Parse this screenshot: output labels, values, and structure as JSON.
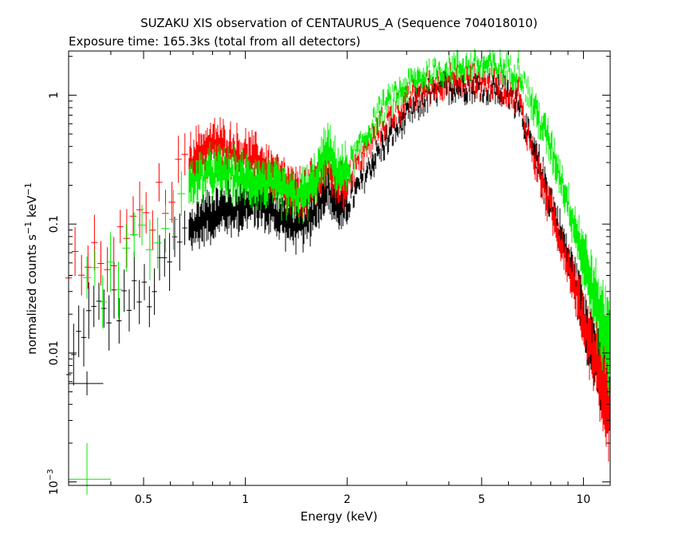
{
  "chart_data": {
    "type": "scatter",
    "title": "SUZAKU XIS observation of CENTAURUS_A (Sequence 704018010)",
    "subtitle": "Exposure time: 165.3ks (total from all detectors)",
    "xlabel": "Energy (keV)",
    "ylabel": {
      "base": "normalized counts s",
      "sup1": "−1",
      "mid": " keV",
      "sup2": "−1"
    },
    "xscale": "log",
    "yscale": "log",
    "xlim": [
      0.3,
      12
    ],
    "ylim": [
      0.00094,
      2.2
    ],
    "x_ticks": [
      {
        "value": 0.5,
        "label": "0.5"
      },
      {
        "value": 1,
        "label": "1"
      },
      {
        "value": 2,
        "label": "2"
      },
      {
        "value": 5,
        "label": "5"
      },
      {
        "value": 10,
        "label": "10"
      }
    ],
    "y_ticks": [
      {
        "value": 0.001,
        "label_base": "10",
        "label_sup": "−3"
      },
      {
        "value": 0.01,
        "label": "0.01"
      },
      {
        "value": 0.1,
        "label": "0.1"
      },
      {
        "value": 1,
        "label": "1"
      }
    ],
    "series": [
      {
        "color": "#000000",
        "x": [
          0.3,
          0.33,
          0.37,
          0.4,
          0.43,
          0.47,
          0.5,
          0.55,
          0.6,
          0.65,
          0.7,
          0.75,
          0.8,
          0.85,
          0.9,
          1.0,
          1.1,
          1.2,
          1.3,
          1.4,
          1.5,
          1.6,
          1.74,
          1.84,
          1.95,
          2.1,
          2.3,
          2.5,
          2.8,
          3.1,
          3.5,
          4.0,
          4.5,
          5.0,
          5.5,
          6.0,
          6.3,
          6.4,
          6.6,
          7.0,
          7.5,
          8.0,
          8.5,
          9.0,
          9.5,
          10.0,
          10.5,
          11.0,
          11.5,
          12.0
        ],
        "y": [
          0.006,
          0.017,
          0.02,
          0.022,
          0.025,
          0.026,
          0.027,
          0.035,
          0.055,
          0.075,
          0.095,
          0.11,
          0.12,
          0.13,
          0.13,
          0.14,
          0.15,
          0.13,
          0.11,
          0.1,
          0.1,
          0.13,
          0.2,
          0.15,
          0.13,
          0.17,
          0.26,
          0.38,
          0.55,
          0.75,
          1.0,
          1.15,
          1.18,
          1.17,
          1.1,
          1.0,
          0.9,
          1.0,
          0.7,
          0.4,
          0.25,
          0.15,
          0.09,
          0.055,
          0.035,
          0.02,
          0.013,
          0.009,
          0.006,
          0.004
        ]
      },
      {
        "color": "#ff0000",
        "x": [
          0.3,
          0.33,
          0.36,
          0.4,
          0.45,
          0.5,
          0.55,
          0.6,
          0.65,
          0.7,
          0.75,
          0.8,
          0.85,
          0.9,
          1.0,
          1.1,
          1.2,
          1.3,
          1.4,
          1.5,
          1.6,
          1.74,
          1.84,
          1.95,
          2.1,
          2.3,
          2.5,
          2.8,
          3.1,
          3.5,
          4.0,
          4.5,
          5.0,
          5.5,
          6.0,
          6.3,
          6.4,
          6.6,
          7.0,
          7.5,
          8.0,
          8.5,
          9.0,
          9.5,
          10.0,
          10.5,
          11.0,
          11.5,
          12.0
        ],
        "y": [
          0.04,
          0.045,
          0.05,
          0.06,
          0.075,
          0.1,
          0.14,
          0.19,
          0.25,
          0.33,
          0.38,
          0.4,
          0.4,
          0.38,
          0.33,
          0.3,
          0.25,
          0.2,
          0.17,
          0.17,
          0.2,
          0.3,
          0.23,
          0.2,
          0.27,
          0.4,
          0.55,
          0.75,
          0.95,
          1.15,
          1.28,
          1.3,
          1.28,
          1.2,
          1.1,
          0.95,
          1.1,
          0.7,
          0.4,
          0.22,
          0.13,
          0.08,
          0.05,
          0.03,
          0.018,
          0.012,
          0.008,
          0.005,
          0.0035
        ]
      },
      {
        "color": "#00ee00",
        "x": [
          0.3,
          0.33,
          0.37,
          0.4,
          0.45,
          0.5,
          0.55,
          0.6,
          0.65,
          0.7,
          0.75,
          0.8,
          0.85,
          0.9,
          1.0,
          1.1,
          1.2,
          1.3,
          1.4,
          1.5,
          1.6,
          1.74,
          1.84,
          1.95,
          2.1,
          2.3,
          2.5,
          2.8,
          3.1,
          3.5,
          4.0,
          4.5,
          5.0,
          5.5,
          6.0,
          6.3,
          6.4,
          6.6,
          7.0,
          7.5,
          8.0,
          8.5,
          9.0,
          9.5,
          10.0,
          10.5,
          11.0,
          11.5,
          12.0
        ],
        "y": [
          0.001,
          0.03,
          0.035,
          0.04,
          0.055,
          0.07,
          0.095,
          0.13,
          0.17,
          0.21,
          0.24,
          0.25,
          0.25,
          0.24,
          0.22,
          0.21,
          0.2,
          0.18,
          0.16,
          0.17,
          0.21,
          0.38,
          0.28,
          0.24,
          0.33,
          0.5,
          0.75,
          1.0,
          1.25,
          1.45,
          1.6,
          1.68,
          1.7,
          1.65,
          1.6,
          1.5,
          1.75,
          1.3,
          0.9,
          0.6,
          0.4,
          0.25,
          0.15,
          0.09,
          0.055,
          0.035,
          0.022,
          0.015,
          0.012
        ]
      }
    ],
    "legend_markers": [
      {
        "color": "#000000",
        "x": 0.34,
        "xerr": [
          0.3,
          0.38
        ],
        "y": 0.0058,
        "yerr": [
          0.0047,
          0.0072
        ]
      },
      {
        "color": "#00ee00",
        "x": 0.34,
        "xerr": [
          0.3,
          0.4
        ],
        "y": 0.00105,
        "yerr": [
          0.0008,
          0.002
        ]
      }
    ]
  }
}
